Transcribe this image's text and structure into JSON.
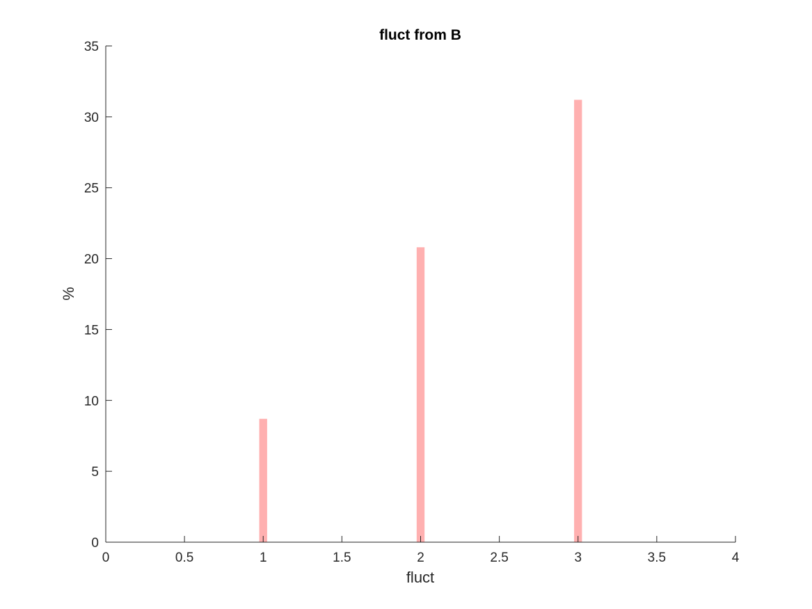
{
  "chart_data": {
    "type": "bar",
    "title": "fluct from B",
    "xlabel": "fluct",
    "ylabel": "%",
    "xlim": [
      0,
      4
    ],
    "ylim": [
      0,
      35
    ],
    "xticks": [
      "0",
      "0.5",
      "1",
      "1.5",
      "2",
      "2.5",
      "3",
      "3.5",
      "4"
    ],
    "yticks": [
      "0",
      "5",
      "10",
      "15",
      "20",
      "25",
      "30",
      "35"
    ],
    "bar_width": 0.05,
    "bar_color": "#ffb0b0",
    "grid": false,
    "x": [
      1,
      2,
      3
    ],
    "values": [
      8.7,
      20.8,
      31.2
    ]
  }
}
